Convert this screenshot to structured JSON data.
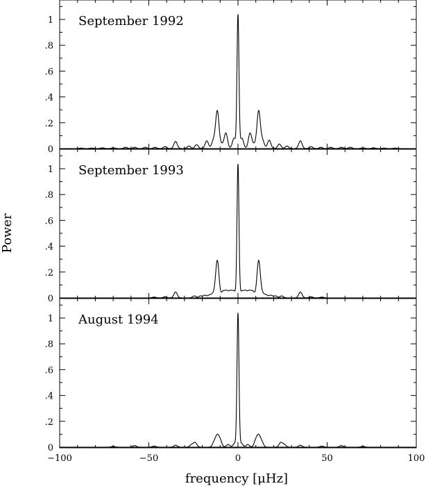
{
  "chart_data": [
    {
      "type": "line",
      "title": "September 1992",
      "xlim": [
        -100,
        100
      ],
      "ylim": [
        0,
        1.1
      ],
      "yticks": [
        "0",
        ".2",
        ".4",
        ".6",
        ".8",
        "1"
      ],
      "peaks": [
        {
          "x": 0,
          "y": 1.03
        },
        {
          "x": -11.6,
          "y": 0.29
        },
        {
          "x": 11.6,
          "y": 0.29
        },
        {
          "x": -2.2,
          "y": 0.08
        },
        {
          "x": 2.2,
          "y": 0.08
        },
        {
          "x": -6.8,
          "y": 0.12
        },
        {
          "x": 6.8,
          "y": 0.12
        },
        {
          "x": -9.2,
          "y": 0.03
        },
        {
          "x": 9.2,
          "y": 0.03
        },
        {
          "x": -13.8,
          "y": 0.06
        },
        {
          "x": 13.8,
          "y": 0.06
        },
        {
          "x": -17.5,
          "y": 0.06
        },
        {
          "x": 17.5,
          "y": 0.065
        },
        {
          "x": -23.2,
          "y": 0.03
        },
        {
          "x": 23.2,
          "y": 0.035
        },
        {
          "x": -27.5,
          "y": 0.02
        },
        {
          "x": 27.5,
          "y": 0.02
        },
        {
          "x": -35,
          "y": 0.055
        },
        {
          "x": 35,
          "y": 0.06
        },
        {
          "x": -41,
          "y": 0.015
        },
        {
          "x": 41,
          "y": 0.015
        },
        {
          "x": -46.5,
          "y": 0.01
        },
        {
          "x": 46.5,
          "y": 0.01
        },
        {
          "x": -52,
          "y": 0.01
        },
        {
          "x": 52,
          "y": 0.01
        },
        {
          "x": -58,
          "y": 0.01
        },
        {
          "x": 58,
          "y": 0.01
        },
        {
          "x": -63,
          "y": 0.01
        },
        {
          "x": 63,
          "y": 0.01
        },
        {
          "x": -70,
          "y": 0.006
        },
        {
          "x": 70,
          "y": 0.006
        },
        {
          "x": -76,
          "y": 0.006
        },
        {
          "x": 76,
          "y": 0.006
        },
        {
          "x": -82,
          "y": 0.004
        },
        {
          "x": 82,
          "y": 0.004
        },
        {
          "x": -88,
          "y": 0.004
        },
        {
          "x": 88,
          "y": 0.004
        }
      ]
    },
    {
      "type": "line",
      "title": "September 1993",
      "xlim": [
        -100,
        100
      ],
      "ylim": [
        0,
        1.1
      ],
      "yticks": [
        "0",
        ".2",
        ".4",
        ".6",
        ".8",
        "1"
      ],
      "peaks": [
        {
          "x": 0,
          "y": 1.03
        },
        {
          "x": -11.6,
          "y": 0.29
        },
        {
          "x": 11.6,
          "y": 0.29
        },
        {
          "x": -2.2,
          "y": 0.05
        },
        {
          "x": 2.2,
          "y": 0.05
        },
        {
          "x": -4.2,
          "y": 0.05
        },
        {
          "x": 4.2,
          "y": 0.05
        },
        {
          "x": -6.3,
          "y": 0.05
        },
        {
          "x": 6.3,
          "y": 0.05
        },
        {
          "x": -8.3,
          "y": 0.05
        },
        {
          "x": 8.3,
          "y": 0.05
        },
        {
          "x": -14,
          "y": 0.03
        },
        {
          "x": 14,
          "y": 0.03
        },
        {
          "x": -16,
          "y": 0.02
        },
        {
          "x": 16,
          "y": 0.02
        },
        {
          "x": -18.5,
          "y": 0.02
        },
        {
          "x": 18.5,
          "y": 0.02
        },
        {
          "x": -21,
          "y": 0.015
        },
        {
          "x": 21,
          "y": 0.015
        },
        {
          "x": -24.5,
          "y": 0.015
        },
        {
          "x": 24.5,
          "y": 0.015
        },
        {
          "x": -35,
          "y": 0.045
        },
        {
          "x": 35,
          "y": 0.045
        },
        {
          "x": -41,
          "y": 0.008
        },
        {
          "x": 41,
          "y": 0.008
        },
        {
          "x": -47,
          "y": 0.006
        },
        {
          "x": 47,
          "y": 0.006
        }
      ]
    },
    {
      "type": "line",
      "title": "August 1994",
      "xlim": [
        -100,
        100
      ],
      "ylim": [
        0,
        1.1
      ],
      "yticks": [
        "0",
        ".2",
        ".4",
        ".6",
        ".8",
        "1"
      ],
      "xticks": [
        "−100",
        "−50",
        "0",
        "50",
        "100"
      ],
      "xlabel": "frequency [μHz]",
      "ylabel": "Power",
      "peaks": [
        {
          "x": 0,
          "y": 1.03
        },
        {
          "x": -11.6,
          "y": 0.08
        },
        {
          "x": 11.6,
          "y": 0.08
        },
        {
          "x": -10,
          "y": 0.05
        },
        {
          "x": 10,
          "y": 0.05
        },
        {
          "x": -13.3,
          "y": 0.04
        },
        {
          "x": 13.3,
          "y": 0.04
        },
        {
          "x": -1.8,
          "y": 0.03
        },
        {
          "x": 1.8,
          "y": 0.03
        },
        {
          "x": -5.5,
          "y": 0.02
        },
        {
          "x": 5.5,
          "y": 0.02
        },
        {
          "x": -24,
          "y": 0.035
        },
        {
          "x": 24,
          "y": 0.035
        },
        {
          "x": -26,
          "y": 0.02
        },
        {
          "x": 26,
          "y": 0.02
        },
        {
          "x": -35,
          "y": 0.015
        },
        {
          "x": 35,
          "y": 0.015
        },
        {
          "x": -47,
          "y": 0.008
        },
        {
          "x": 47,
          "y": 0.008
        },
        {
          "x": -58,
          "y": 0.012
        },
        {
          "x": 58,
          "y": 0.012
        },
        {
          "x": -70,
          "y": 0.006
        },
        {
          "x": 70,
          "y": 0.006
        }
      ]
    }
  ]
}
